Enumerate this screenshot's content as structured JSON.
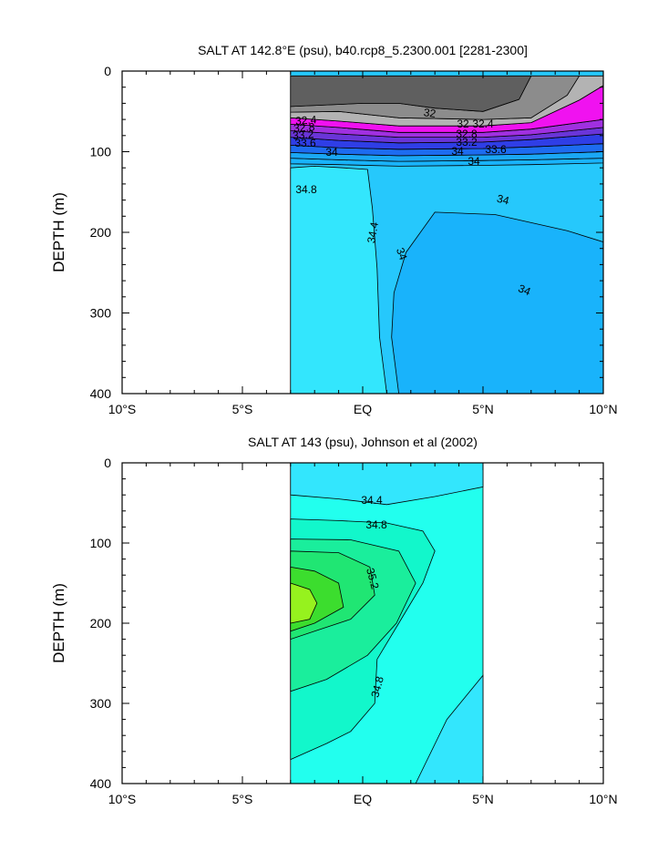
{
  "colors": {
    "dark_gray": "#5f5f5f",
    "gray": "#8c8c8c",
    "light_gray": "#b3b3b3",
    "magenta": "#f012f0",
    "purple": "#a030e0",
    "blue_violet": "#6a35d8",
    "royal_blue": "#2f3ee6",
    "blue": "#1d6cf0",
    "azure": "#1aa7f5",
    "deep_sky": "#19b3fb",
    "sky_blue": "#26c8fc",
    "cyan": "#33e6fd",
    "aqua": "#22ffee",
    "aquamarine": "#12f7cb",
    "spring_green": "#1aee9c",
    "green": "#20e673",
    "lime_green": "#3cdd2e",
    "chartreuse": "#96f21e",
    "line": "#000000"
  },
  "chart_data": [
    {
      "type": "contour",
      "title": "SALT AT 142.8°E (psu), b40.rcp8_5.2300.001 [2281-2300]",
      "ylabel": "DEPTH (m)",
      "xlabel": "",
      "xlim": [
        -10,
        10
      ],
      "ylim": [
        400,
        0
      ],
      "x_ticks": [
        -10,
        -5,
        0,
        5,
        10
      ],
      "x_tick_labels": [
        "10°S",
        "5°S",
        "EQ",
        "5°N",
        "10°N"
      ],
      "y_ticks": [
        0,
        100,
        200,
        300,
        400
      ],
      "y_tick_labels": [
        "0",
        "100",
        "200",
        "300",
        "400"
      ],
      "data_extent": {
        "lat": [
          -3,
          10
        ],
        "depth": [
          0,
          400
        ]
      },
      "contour_labels": [
        "32",
        "32.4",
        "32.8",
        "33.2",
        "33.6",
        "34",
        "34",
        "34.8",
        "34.4",
        "34",
        "34",
        "34",
        "32",
        "32.4",
        "32.8",
        "33.2",
        "33.6",
        "34"
      ],
      "regions": [
        {
          "level": "34 to 34.4",
          "color_key": "sky_blue",
          "boundary": [
            [
              -3,
              400
            ],
            [
              10,
              400
            ],
            [
              10,
              0
            ],
            [
              -3,
              0
            ]
          ]
        },
        {
          "level": "34.4 to 34.8",
          "color_key": "cyan",
          "boundary": [
            [
              -3,
              120
            ],
            [
              -2,
              118
            ],
            [
              -0.8,
              120
            ],
            [
              0.2,
              122
            ],
            [
              0.4,
              170
            ],
            [
              0.6,
              245
            ],
            [
              0.7,
              330
            ],
            [
              1.0,
              400
            ],
            [
              -3,
              400
            ]
          ]
        },
        {
          "level": "33.6 to 34",
          "color_key": "deep_sky",
          "boundary": [
            [
              1.5,
              400
            ],
            [
              1.2,
              330
            ],
            [
              1.3,
              275
            ],
            [
              1.8,
              225
            ],
            [
              3.0,
              175
            ],
            [
              5.5,
              178
            ],
            [
              8.5,
              198
            ],
            [
              10,
              212
            ],
            [
              10,
              400
            ]
          ]
        },
        {
          "level": "33.6 to 34",
          "color_key": "deep_sky",
          "boundary": [
            [
              -3,
              115
            ],
            [
              -1,
              116
            ],
            [
              1.5,
              118
            ],
            [
              5,
              117
            ],
            [
              7,
              116
            ],
            [
              10,
              114
            ],
            [
              10,
              108
            ],
            [
              7,
              110
            ],
            [
              5,
              111
            ],
            [
              1.5,
              112
            ],
            [
              -1,
              110
            ],
            [
              -3,
              108
            ]
          ]
        },
        {
          "level": "33.2 to 33.6",
          "color_key": "azure",
          "boundary": [
            [
              -3,
              108
            ],
            [
              -1,
              110
            ],
            [
              1.5,
              112
            ],
            [
              5,
              111
            ],
            [
              7,
              110
            ],
            [
              10,
              108
            ],
            [
              10,
              100
            ],
            [
              7,
              103
            ],
            [
              5,
              104
            ],
            [
              1.5,
              105
            ],
            [
              -1,
              103
            ],
            [
              -3,
              101
            ]
          ]
        },
        {
          "level": "32.8 to 33.2",
          "color_key": "blue",
          "boundary": [
            [
              -3,
              101
            ],
            [
              -1,
              103
            ],
            [
              1.5,
              105
            ],
            [
              5,
              104
            ],
            [
              7,
              103
            ],
            [
              10,
              100
            ],
            [
              10,
              90
            ],
            [
              7,
              94
            ],
            [
              5,
              96
            ],
            [
              1.5,
              97
            ],
            [
              -1,
              95
            ],
            [
              -3,
              92
            ]
          ]
        },
        {
          "level": "32.4 to 32.8",
          "color_key": "royal_blue",
          "boundary": [
            [
              -3,
              92
            ],
            [
              -1,
              95
            ],
            [
              1.5,
              97
            ],
            [
              5,
              96
            ],
            [
              7,
              94
            ],
            [
              10,
              90
            ],
            [
              10,
              78
            ],
            [
              7,
              85
            ],
            [
              5,
              88
            ],
            [
              1.5,
              89
            ],
            [
              -1,
              86
            ],
            [
              -3,
              82
            ]
          ]
        },
        {
          "level": "32 to 32.4",
          "color_key": "blue_violet",
          "boundary": [
            [
              -3,
              82
            ],
            [
              -1,
              86
            ],
            [
              1.5,
              89
            ],
            [
              5,
              88
            ],
            [
              7,
              85
            ],
            [
              10,
              78
            ],
            [
              10,
              70
            ],
            [
              7,
              79
            ],
            [
              5,
              82
            ],
            [
              1.5,
              82
            ],
            [
              -1,
              78
            ],
            [
              -3,
              74
            ]
          ]
        },
        {
          "level": "31.6 to 32",
          "color_key": "purple",
          "boundary": [
            [
              -3,
              74
            ],
            [
              -1,
              78
            ],
            [
              1.5,
              82
            ],
            [
              5,
              82
            ],
            [
              7,
              79
            ],
            [
              10,
              70
            ],
            [
              10,
              60
            ],
            [
              7,
              72
            ],
            [
              5,
              76
            ],
            [
              1.5,
              76
            ],
            [
              -1,
              70
            ],
            [
              -3,
              66
            ]
          ]
        },
        {
          "level": "31.2 to 31.6",
          "color_key": "magenta",
          "boundary": [
            [
              -3,
              66
            ],
            [
              -1,
              70
            ],
            [
              1.5,
              76
            ],
            [
              5,
              76
            ],
            [
              7,
              72
            ],
            [
              10,
              60
            ],
            [
              10,
              18
            ],
            [
              9,
              36
            ],
            [
              7,
              64
            ],
            [
              5,
              68
            ],
            [
              1.5,
              68
            ],
            [
              -1,
              62
            ],
            [
              -3,
              58
            ]
          ]
        },
        {
          "level": "30.8 to 31.2",
          "color_key": "light_gray",
          "boundary": [
            [
              -3,
              58
            ],
            [
              -1,
              62
            ],
            [
              1.5,
              68
            ],
            [
              5,
              68
            ],
            [
              7,
              64
            ],
            [
              9,
              36
            ],
            [
              10,
              18
            ],
            [
              10,
              6
            ],
            [
              9,
              6
            ],
            [
              8.5,
              30
            ],
            [
              7,
              58
            ],
            [
              5,
              60
            ],
            [
              1.5,
              58
            ],
            [
              -1,
              50
            ],
            [
              -3,
              51
            ]
          ]
        },
        {
          "level": "30.4 to 30.8",
          "color_key": "gray",
          "boundary": [
            [
              -3,
              51
            ],
            [
              -1,
              50
            ],
            [
              1.5,
              58
            ],
            [
              5,
              60
            ],
            [
              7,
              58
            ],
            [
              8.5,
              30
            ],
            [
              9,
              6
            ],
            [
              7,
              6
            ],
            [
              6.5,
              35
            ],
            [
              5,
              50
            ],
            [
              3,
              46
            ],
            [
              1.5,
              40
            ],
            [
              0,
              40
            ],
            [
              -3,
              44
            ]
          ]
        },
        {
          "level": "<30.4",
          "color_key": "dark_gray",
          "boundary": [
            [
              -3,
              44
            ],
            [
              0,
              40
            ],
            [
              1.5,
              40
            ],
            [
              3,
              46
            ],
            [
              5,
              50
            ],
            [
              6.5,
              35
            ],
            [
              7,
              6
            ],
            [
              -3,
              6
            ]
          ]
        }
      ]
    },
    {
      "type": "contour",
      "title": "SALT AT 143 (psu), Johnson et al (2002)",
      "ylabel": "DEPTH (m)",
      "xlabel": "",
      "xlim": [
        -10,
        10
      ],
      "ylim": [
        400,
        0
      ],
      "x_ticks": [
        -10,
        -5,
        0,
        5,
        10
      ],
      "x_tick_labels": [
        "10°S",
        "5°S",
        "EQ",
        "5°N",
        "10°N"
      ],
      "y_ticks": [
        0,
        100,
        200,
        300,
        400
      ],
      "y_tick_labels": [
        "0",
        "100",
        "200",
        "300",
        "400"
      ],
      "data_extent": {
        "lat": [
          -3,
          5
        ],
        "depth": [
          0,
          400
        ]
      },
      "contour_labels": [
        "34.4",
        "34.8",
        "35.2",
        "34.8"
      ],
      "regions": [
        {
          "level": "34.8 to 35",
          "color_key": "aqua",
          "boundary": [
            [
              -3,
              400
            ],
            [
              5,
              400
            ],
            [
              5,
              0
            ],
            [
              -3,
              0
            ]
          ]
        },
        {
          "level": "34.6 to 34.8",
          "color_key": "cyan",
          "boundary": [
            [
              -3,
              40
            ],
            [
              -1,
              45
            ],
            [
              1,
              52
            ],
            [
              3,
              42
            ],
            [
              5,
              30
            ],
            [
              5,
              0
            ],
            [
              -3,
              0
            ]
          ]
        },
        {
          "level": "34.6 to 34.8",
          "color_key": "cyan",
          "boundary": [
            [
              2.2,
              400
            ],
            [
              3.5,
              320
            ],
            [
              5,
              265
            ],
            [
              5,
              400
            ]
          ]
        },
        {
          "level": "35 to 35.2",
          "color_key": "aquamarine",
          "boundary": [
            [
              -3,
              70
            ],
            [
              -1,
              72
            ],
            [
              1,
              75
            ],
            [
              2.5,
              85
            ],
            [
              3,
              110
            ],
            [
              2.5,
              150
            ],
            [
              1.5,
              200
            ],
            [
              0.6,
              245
            ],
            [
              0.5,
              300
            ],
            [
              -0.5,
              335
            ],
            [
              -1.5,
              350
            ],
            [
              -3,
              370
            ]
          ]
        },
        {
          "level": "35.2 to 35.4",
          "color_key": "spring_green",
          "boundary": [
            [
              -3,
              95
            ],
            [
              -0.5,
              96
            ],
            [
              1.5,
              110
            ],
            [
              2.2,
              150
            ],
            [
              1.4,
              200
            ],
            [
              0.2,
              240
            ],
            [
              -1.5,
              270
            ],
            [
              -3,
              285
            ]
          ]
        },
        {
          "level": "35.4 to 35.6",
          "color_key": "green",
          "boundary": [
            [
              -3,
              110
            ],
            [
              -1,
              112
            ],
            [
              0.3,
              130
            ],
            [
              0.5,
              165
            ],
            [
              -0.5,
              195
            ],
            [
              -2,
              210
            ],
            [
              -3,
              220
            ]
          ]
        },
        {
          "level": "35.6 to 35.8",
          "color_key": "lime_green",
          "boundary": [
            [
              -3,
              130
            ],
            [
              -2,
              135
            ],
            [
              -1,
              150
            ],
            [
              -0.8,
              180
            ],
            [
              -2,
              200
            ],
            [
              -3,
              210
            ]
          ]
        },
        {
          "level": "35.8 to 36",
          "color_key": "chartreuse",
          "boundary": [
            [
              -3,
              150
            ],
            [
              -2.2,
              158
            ],
            [
              -1.9,
              175
            ],
            [
              -2.2,
              195
            ],
            [
              -3,
              200
            ]
          ]
        }
      ]
    }
  ]
}
